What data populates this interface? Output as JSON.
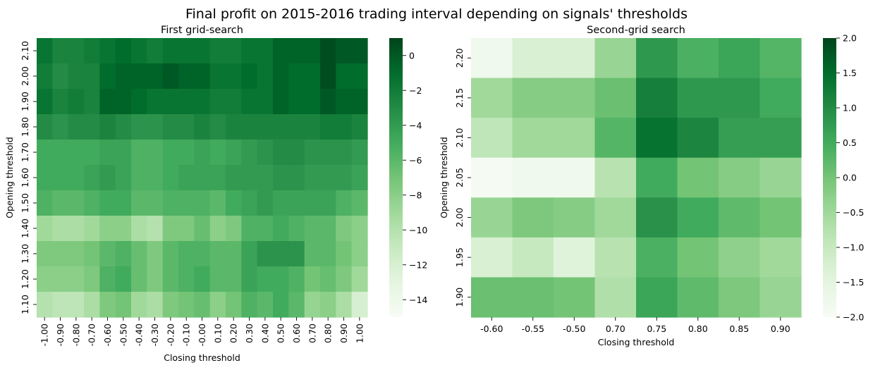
{
  "title": "Final profit on 2015-2016 trading interval depending on signals' thresholds",
  "chart_data": [
    {
      "type": "heatmap",
      "title": "First grid-search",
      "xlabel": "Closing threshold",
      "ylabel": "Opening threshold",
      "x_categories": [
        "-1.00",
        "-0.90",
        "-0.80",
        "-0.70",
        "-0.60",
        "-0.50",
        "-0.40",
        "-0.30",
        "-0.20",
        "-0.10",
        "-0.00",
        "0.10",
        "0.20",
        "0.30",
        "0.40",
        "0.50",
        "0.60",
        "0.70",
        "0.80",
        "0.90",
        "1.00"
      ],
      "y_categories": [
        "2.10",
        "2.00",
        "1.90",
        "1.80",
        "1.70",
        "1.60",
        "1.50",
        "1.40",
        "1.30",
        "1.20",
        "1.10"
      ],
      "values": [
        [
          -1.5,
          -2.5,
          -2.5,
          -2.0,
          -1.5,
          -1.0,
          -1.5,
          -2.0,
          -1.5,
          -1.5,
          -1.5,
          -2.0,
          -2.0,
          -1.5,
          -1.5,
          -0.5,
          -0.5,
          -0.5,
          0.5,
          0.0,
          0.0
        ],
        [
          -2.0,
          -3.0,
          -2.5,
          -2.5,
          -1.0,
          -0.5,
          -0.5,
          -0.5,
          0.0,
          -0.5,
          -0.5,
          -1.5,
          -1.5,
          -1.0,
          -1.5,
          -0.5,
          -1.0,
          -1.0,
          0.5,
          -1.0,
          -1.0
        ],
        [
          -1.5,
          -2.5,
          -2.0,
          -2.5,
          -0.5,
          -0.5,
          -1.0,
          -1.5,
          -1.5,
          -1.5,
          -1.5,
          -2.0,
          -2.0,
          -1.5,
          -1.5,
          -0.5,
          -1.0,
          -1.0,
          0.0,
          -0.5,
          -0.5
        ],
        [
          -3.0,
          -3.5,
          -3.0,
          -3.0,
          -2.5,
          -3.0,
          -3.5,
          -3.5,
          -3.0,
          -3.0,
          -2.5,
          -3.0,
          -2.5,
          -2.5,
          -2.5,
          -2.5,
          -2.5,
          -2.5,
          -2.0,
          -2.0,
          -2.5
        ],
        [
          -5.0,
          -5.0,
          -5.0,
          -5.0,
          -4.5,
          -4.5,
          -5.5,
          -5.5,
          -5.0,
          -5.0,
          -4.5,
          -5.0,
          -4.5,
          -4.0,
          -3.5,
          -3.0,
          -3.0,
          -3.5,
          -3.5,
          -3.5,
          -4.0
        ],
        [
          -5.0,
          -5.0,
          -5.0,
          -4.5,
          -4.0,
          -4.5,
          -5.5,
          -5.5,
          -5.0,
          -4.5,
          -4.5,
          -4.5,
          -4.0,
          -4.0,
          -4.0,
          -3.5,
          -3.5,
          -4.0,
          -4.0,
          -4.0,
          -4.5
        ],
        [
          -5.5,
          -6.0,
          -6.0,
          -5.5,
          -5.0,
          -5.0,
          -6.0,
          -6.0,
          -5.5,
          -5.5,
          -5.5,
          -6.0,
          -5.0,
          -4.5,
          -4.0,
          -4.5,
          -4.5,
          -4.5,
          -4.5,
          -5.5,
          -6.0
        ],
        [
          -9.0,
          -9.5,
          -9.5,
          -9.0,
          -8.0,
          -8.0,
          -9.5,
          -10.0,
          -7.5,
          -7.5,
          -6.5,
          -8.0,
          -7.5,
          -5.5,
          -5.5,
          -5.0,
          -5.5,
          -6.0,
          -6.0,
          -7.5,
          -8.0
        ],
        [
          -7.5,
          -7.5,
          -7.5,
          -7.0,
          -6.0,
          -5.5,
          -6.5,
          -7.5,
          -6.0,
          -5.5,
          -5.5,
          -6.0,
          -6.0,
          -4.5,
          -3.5,
          -3.5,
          -3.5,
          -6.0,
          -6.0,
          -7.0,
          -8.0
        ],
        [
          -8.0,
          -8.0,
          -8.0,
          -7.5,
          -5.5,
          -5.0,
          -6.5,
          -7.5,
          -6.0,
          -5.5,
          -5.0,
          -6.0,
          -6.0,
          -4.5,
          -5.0,
          -5.0,
          -5.5,
          -7.0,
          -6.5,
          -7.5,
          -9.0
        ],
        [
          -10.0,
          -10.5,
          -10.5,
          -9.5,
          -7.5,
          -7.0,
          -9.0,
          -9.5,
          -7.5,
          -7.0,
          -6.5,
          -8.0,
          -7.0,
          -5.5,
          -6.0,
          -5.0,
          -6.0,
          -8.5,
          -8.0,
          -9.5,
          -12.0
        ]
      ],
      "colorbar_min": -15,
      "colorbar_max": 1,
      "colorbar_ticks": [
        0,
        -2,
        -4,
        -6,
        -8,
        -10,
        -12,
        -14
      ],
      "colorbar_tick_labels": [
        "0",
        "−2",
        "−4",
        "−6",
        "−8",
        "−10",
        "−12",
        "−14"
      ]
    },
    {
      "type": "heatmap",
      "title": "Second-grid search",
      "xlabel": "Closing threshold",
      "ylabel": "Opening threshold",
      "x_categories": [
        "-0.60",
        "-0.55",
        "-0.50",
        "0.70",
        "0.75",
        "0.80",
        "0.85",
        "0.90"
      ],
      "y_categories": [
        "2.20",
        "2.15",
        "2.10",
        "2.05",
        "2.00",
        "1.95",
        "1.90"
      ],
      "values": [
        [
          -1.8,
          -1.3,
          -1.3,
          -0.4,
          0.8,
          0.4,
          0.6,
          0.3
        ],
        [
          -0.5,
          -0.2,
          -0.2,
          0.1,
          1.2,
          0.8,
          0.8,
          0.5
        ],
        [
          -0.9,
          -0.5,
          -0.5,
          0.3,
          1.4,
          1.1,
          0.7,
          0.7
        ],
        [
          -1.95,
          -1.8,
          -1.8,
          -0.8,
          0.5,
          0.0,
          -0.2,
          -0.4
        ],
        [
          -0.4,
          -0.1,
          -0.2,
          -0.5,
          0.9,
          0.5,
          0.2,
          0.0
        ],
        [
          -1.3,
          -1.0,
          -1.4,
          -0.8,
          0.4,
          0.0,
          -0.3,
          -0.5
        ],
        [
          0.1,
          0.1,
          0.0,
          -0.7,
          0.6,
          0.2,
          -0.1,
          -0.4
        ]
      ],
      "colorbar_min": -2,
      "colorbar_max": 2,
      "colorbar_ticks": [
        2.0,
        1.5,
        1.0,
        0.5,
        0.0,
        -0.5,
        -1.0,
        -1.5,
        -2.0
      ],
      "colorbar_tick_labels": [
        "2.0",
        "1.5",
        "1.0",
        "0.5",
        "0.0",
        "−0.5",
        "−1.0",
        "−1.5",
        "−2.0"
      ]
    }
  ]
}
